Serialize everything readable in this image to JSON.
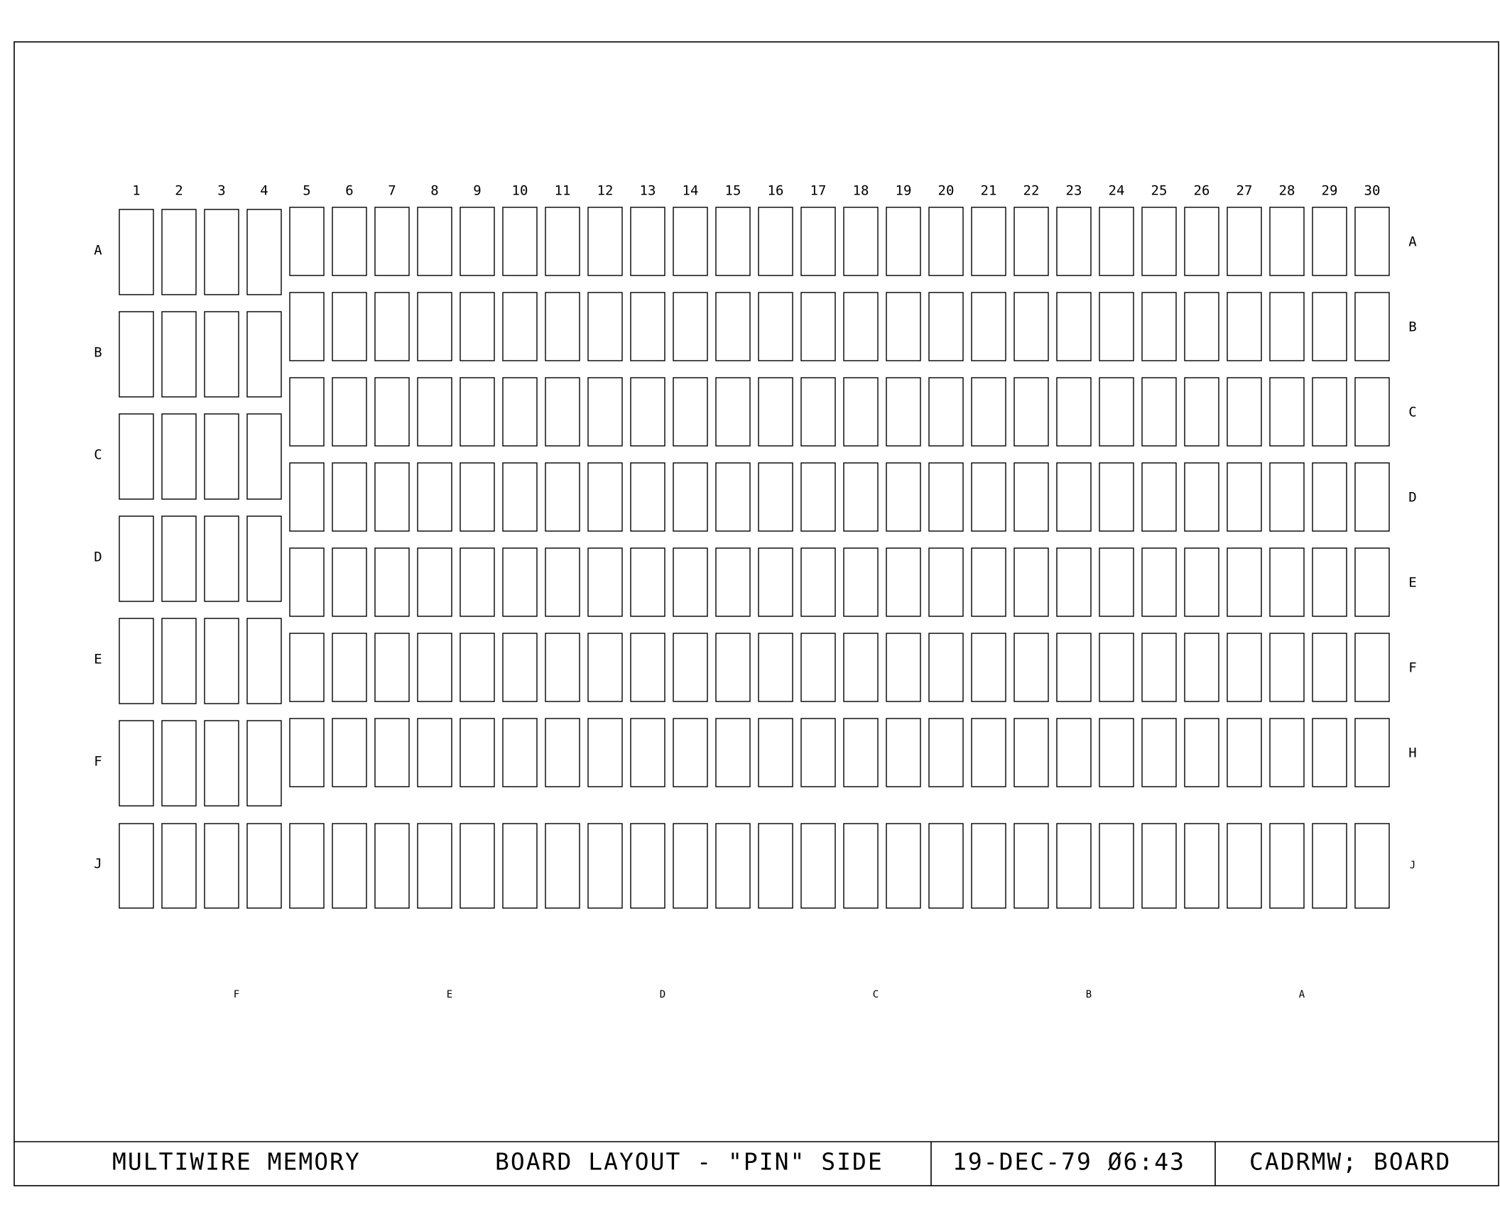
{
  "column_numbers": [
    "1",
    "2",
    "3",
    "4",
    "5",
    "6",
    "7",
    "8",
    "9",
    "10",
    "11",
    "12",
    "13",
    "14",
    "15",
    "16",
    "17",
    "18",
    "19",
    "20",
    "21",
    "22",
    "23",
    "24",
    "25",
    "26",
    "27",
    "28",
    "29",
    "30"
  ],
  "left_row_letters": [
    "A",
    "B",
    "C",
    "D",
    "E",
    "F",
    "J"
  ],
  "right_row_letters": [
    "A",
    "B",
    "C",
    "D",
    "E",
    "F",
    "H",
    "J"
  ],
  "bottom_section_letters": [
    "F",
    "E",
    "D",
    "C",
    "B",
    "A"
  ],
  "title_block": {
    "name": "MULTIWIRE MEMORY",
    "description": "BOARD LAYOUT - \"PIN\" SIDE",
    "date": "19-DEC-79 Ø6:43",
    "file": "CADRMW; BOARD"
  }
}
